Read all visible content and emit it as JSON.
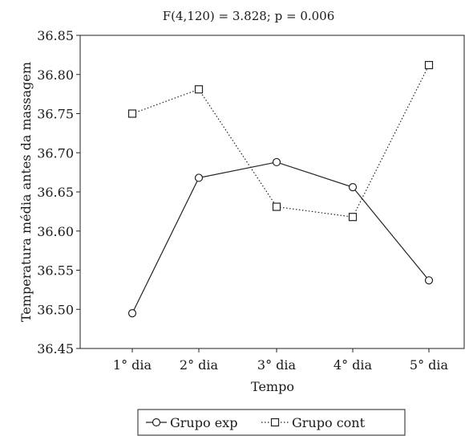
{
  "chart_data": {
    "type": "line",
    "title": "F(4,120) = 3.828; p = 0.006",
    "xlabel": "Tempo",
    "ylabel": "Temperatura média antes da massagem",
    "categories": [
      "1° dia",
      "2° dia",
      "3° dia",
      "4° dia",
      "5° dia"
    ],
    "ylim": [
      36.45,
      36.85
    ],
    "yticks": [
      "36.85",
      "36.80",
      "36.75",
      "36.70",
      "36.65",
      "36.60",
      "36.55",
      "36.50",
      "36.45"
    ],
    "grid": false,
    "legend_position": "bottom-center",
    "series": [
      {
        "name": "Grupo exp",
        "values": [
          36.495,
          36.668,
          36.688,
          36.656,
          36.537
        ],
        "marker": "circle",
        "line_style": "solid"
      },
      {
        "name": "Grupo cont",
        "values": [
          36.75,
          36.781,
          36.631,
          36.618,
          36.812
        ],
        "marker": "square",
        "line_style": "dotted"
      }
    ]
  }
}
